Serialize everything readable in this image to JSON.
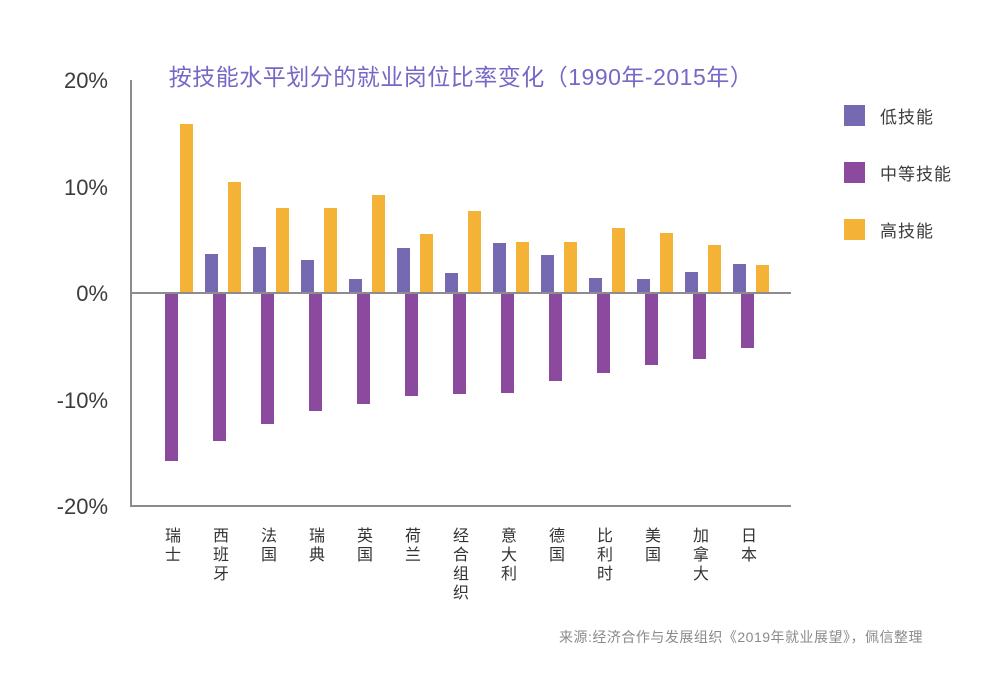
{
  "page": {
    "background": "#ffffff"
  },
  "source_note": "来源:经济合作与发展组织《2019年就业展望》，佩信整理",
  "chart_data": {
    "type": "bar",
    "title": "按技能水平划分的就业岗位比率变化（1990年-2015年）",
    "title_color": "#7668C6",
    "categories": [
      "瑞士",
      "西班牙",
      "法国",
      "瑞典",
      "英国",
      "荷兰",
      "经合组织",
      "意大利",
      "德国",
      "比利时",
      "美国",
      "加拿大",
      "日本"
    ],
    "series": [
      {
        "name": "低技能",
        "color": "#7569B2",
        "values": [
          0,
          3.8,
          4.4,
          3.2,
          1.4,
          4.3,
          2.0,
          4.8,
          3.7,
          1.5,
          1.4,
          2.1,
          2.8
        ]
      },
      {
        "name": "中等技能",
        "color": "#8B4A9E",
        "values": [
          -15.7,
          -13.8,
          -12.2,
          -11.0,
          -10.3,
          -9.6,
          -9.4,
          -9.3,
          -8.2,
          -7.4,
          -6.7,
          -6.1,
          -5.1
        ]
      },
      {
        "name": "高技能",
        "color": "#F4B337",
        "values": [
          16.0,
          10.5,
          8.1,
          8.1,
          9.3,
          5.6,
          7.8,
          4.9,
          4.9,
          6.2,
          5.7,
          4.6,
          2.7
        ]
      }
    ],
    "ylabel": "",
    "xlabel": "",
    "unit": "%",
    "ylim": [
      -20,
      20
    ],
    "yticks": [
      "20%",
      "10%",
      "0%",
      "-10%",
      "-20%"
    ],
    "grid": false,
    "legend_position": "right",
    "axis_color": "#8C8C8C",
    "tick_label_color": "#3C3C3C",
    "category_label_color": "#333333"
  }
}
